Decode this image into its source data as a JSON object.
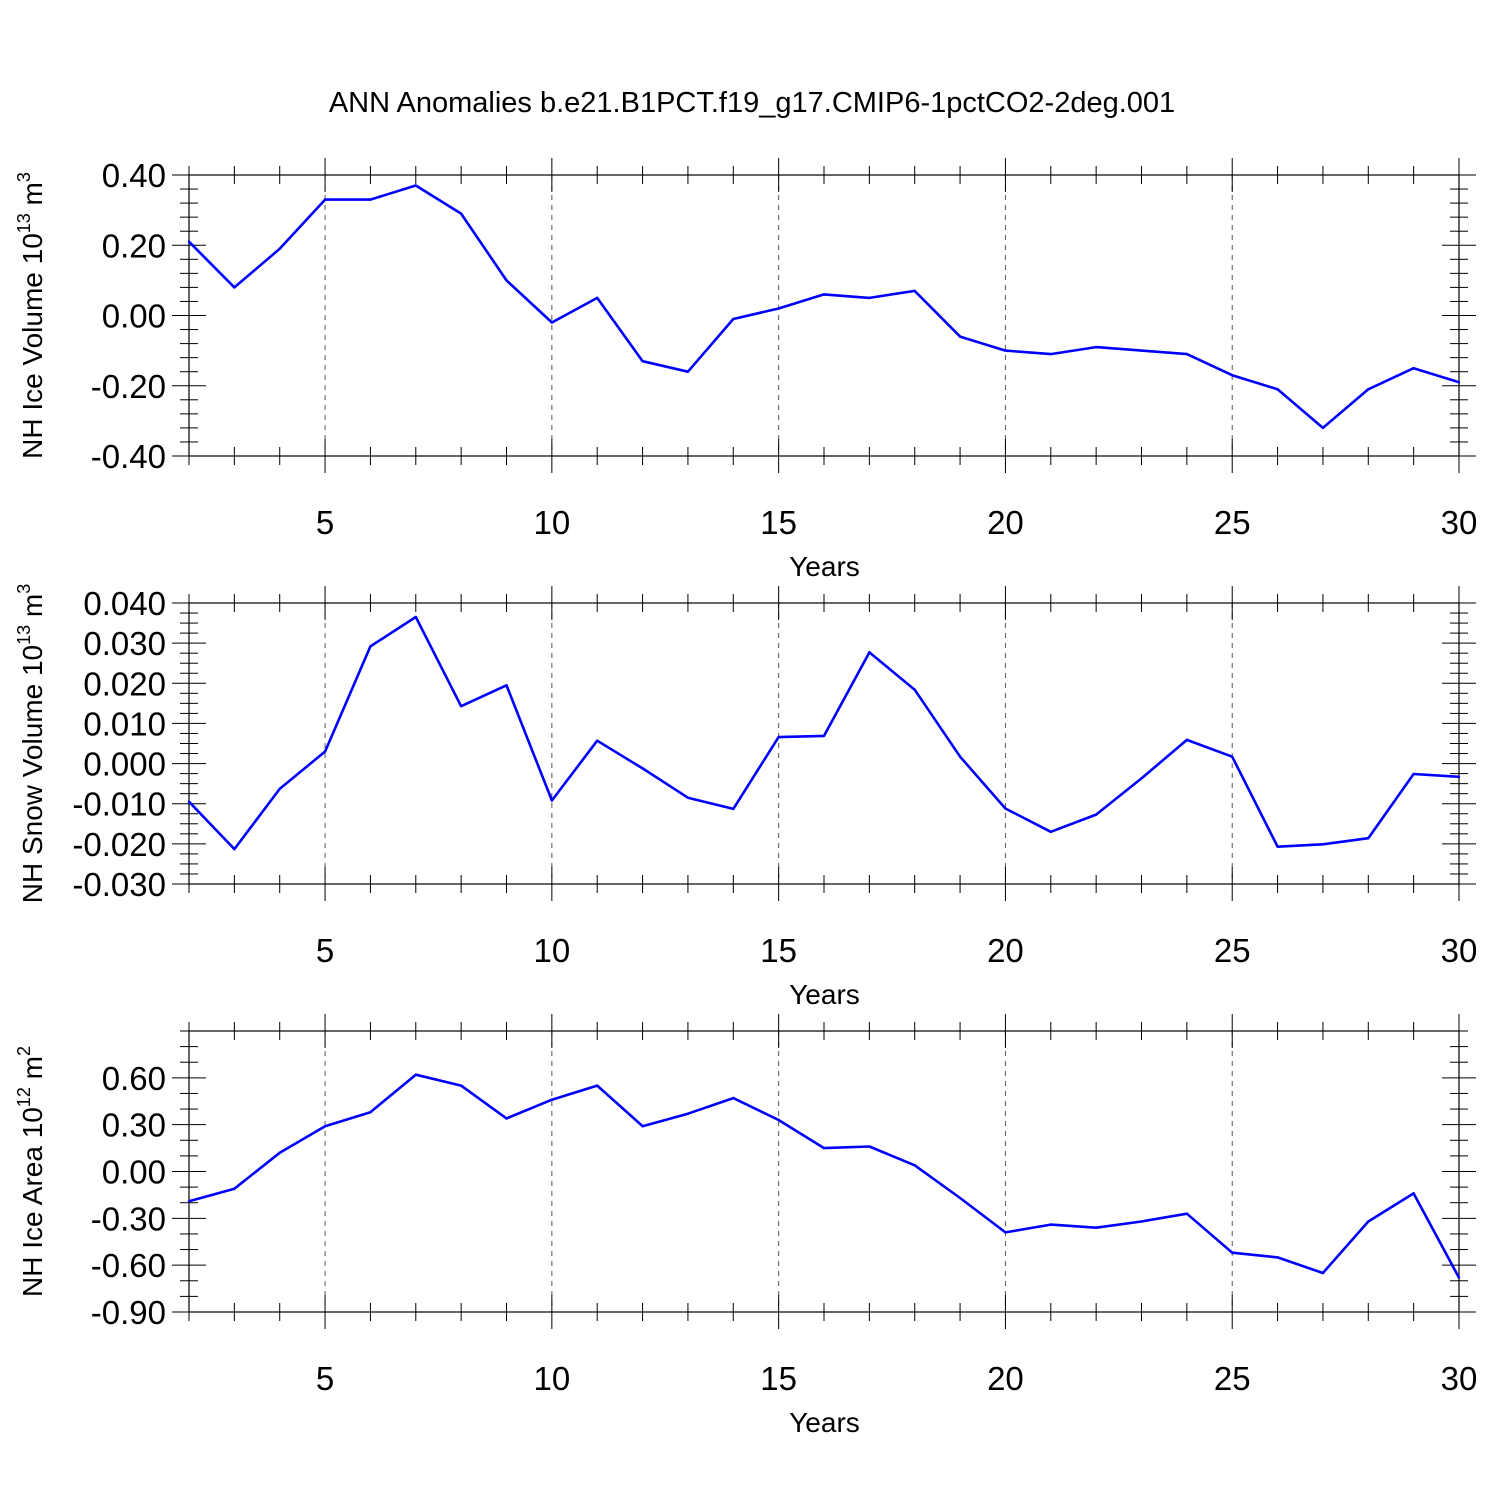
{
  "title": "ANN Anomalies b.e21.B1PCT.f19_g17.CMIP6-1pctCO2-2deg.001",
  "colors": {
    "line": "#0000ff",
    "axis": "#000000",
    "grid": "#555555",
    "background": "#ffffff"
  },
  "chart_data": [
    {
      "type": "line",
      "ylabel": "NH Ice Volume 10",
      "ylabel_exp": "13",
      "ylabel_unit": " m",
      "ylabel_unit_exp": "3",
      "xlabel": "Years",
      "xlim": [
        2,
        30
      ],
      "ylim": [
        -0.4,
        0.4
      ],
      "yticks": [
        -0.4,
        -0.2,
        0.0,
        0.2,
        0.4
      ],
      "ytick_labels": [
        "-0.40",
        "-0.20",
        "0.00",
        "0.20",
        "0.40"
      ],
      "xticks": [
        5,
        10,
        15,
        20,
        25,
        30
      ],
      "xtick_labels": [
        "5",
        "10",
        "15",
        "20",
        "25",
        "30"
      ],
      "grid_x": true,
      "x": [
        2,
        3,
        4,
        5,
        6,
        7,
        8,
        9,
        10,
        11,
        12,
        13,
        14,
        15,
        16,
        17,
        18,
        19,
        20,
        21,
        22,
        23,
        24,
        25,
        26,
        27,
        28,
        29,
        30
      ],
      "values": [
        0.21,
        0.08,
        0.19,
        0.33,
        0.33,
        0.37,
        0.29,
        0.1,
        -0.02,
        0.05,
        -0.13,
        -0.16,
        -0.01,
        0.02,
        0.06,
        0.05,
        0.07,
        -0.06,
        -0.1,
        -0.11,
        -0.09,
        -0.1,
        -0.11,
        -0.17,
        -0.21,
        -0.32,
        -0.21,
        -0.15,
        -0.19
      ]
    },
    {
      "type": "line",
      "ylabel": "NH Snow Volume 10",
      "ylabel_exp": "13",
      "ylabel_unit": " m",
      "ylabel_unit_exp": "3",
      "xlabel": "Years",
      "xlim": [
        2,
        30
      ],
      "ylim": [
        -0.03,
        0.04
      ],
      "yticks": [
        -0.03,
        -0.02,
        -0.01,
        0.0,
        0.01,
        0.02,
        0.03,
        0.04
      ],
      "ytick_labels": [
        "-0.030",
        "-0.020",
        "-0.010",
        "0.000",
        "0.010",
        "0.020",
        "0.030",
        "0.040"
      ],
      "xticks": [
        5,
        10,
        15,
        20,
        25,
        30
      ],
      "xtick_labels": [
        "5",
        "10",
        "15",
        "20",
        "25",
        "30"
      ],
      "grid_x": true,
      "x": [
        2,
        3,
        4,
        5,
        6,
        7,
        8,
        9,
        10,
        11,
        12,
        13,
        14,
        15,
        16,
        17,
        18,
        19,
        20,
        21,
        22,
        23,
        24,
        25,
        26,
        27,
        28,
        29,
        30
      ],
      "values": [
        -0.0095,
        -0.0213,
        -0.0063,
        0.003,
        0.0292,
        0.0365,
        0.0143,
        0.0195,
        -0.0092,
        0.0057,
        -0.0012,
        -0.0085,
        -0.0113,
        0.0066,
        0.0069,
        0.0277,
        0.0184,
        0.0017,
        -0.0112,
        -0.017,
        -0.0127,
        -0.0037,
        0.0059,
        0.0017,
        -0.0207,
        -0.0201,
        -0.0186,
        -0.0026,
        -0.0033
      ]
    },
    {
      "type": "line",
      "ylabel": "NH Ice Area 10",
      "ylabel_exp": "12",
      "ylabel_unit": " m",
      "ylabel_unit_exp": "2",
      "xlabel": "Years",
      "xlim": [
        2,
        30
      ],
      "ylim": [
        -0.9,
        0.9
      ],
      "yticks": [
        -0.9,
        -0.6,
        -0.3,
        0.0,
        0.3,
        0.6
      ],
      "ytick_labels": [
        "-0.90",
        "-0.60",
        "-0.30",
        "0.00",
        "0.30",
        "0.60"
      ],
      "xticks": [
        5,
        10,
        15,
        20,
        25,
        30
      ],
      "xtick_labels": [
        "5",
        "10",
        "15",
        "20",
        "25",
        "30"
      ],
      "grid_x": true,
      "x": [
        2,
        3,
        4,
        5,
        6,
        7,
        8,
        9,
        10,
        11,
        12,
        13,
        14,
        15,
        16,
        17,
        18,
        19,
        20,
        21,
        22,
        23,
        24,
        25,
        26,
        27,
        28,
        29,
        30
      ],
      "values": [
        -0.19,
        -0.11,
        0.12,
        0.29,
        0.38,
        0.62,
        0.55,
        0.34,
        0.46,
        0.55,
        0.29,
        0.37,
        0.47,
        0.33,
        0.15,
        0.16,
        0.04,
        -0.17,
        -0.39,
        -0.34,
        -0.36,
        -0.32,
        -0.27,
        -0.52,
        -0.55,
        -0.65,
        -0.32,
        -0.14,
        -0.68
      ]
    }
  ]
}
